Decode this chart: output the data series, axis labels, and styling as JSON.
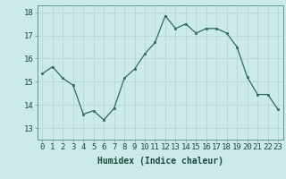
{
  "x": [
    0,
    1,
    2,
    3,
    4,
    5,
    6,
    7,
    8,
    9,
    10,
    11,
    12,
    13,
    14,
    15,
    16,
    17,
    18,
    19,
    20,
    21,
    22,
    23
  ],
  "y": [
    15.35,
    15.65,
    15.15,
    14.85,
    13.6,
    13.75,
    13.35,
    13.85,
    15.15,
    15.55,
    16.2,
    16.7,
    17.85,
    17.3,
    17.5,
    17.1,
    17.3,
    17.3,
    17.1,
    16.5,
    15.2,
    14.45,
    14.45,
    13.8
  ],
  "xlabel": "Humidex (Indice chaleur)",
  "ylim": [
    12.5,
    18.3
  ],
  "xlim": [
    -0.5,
    23.5
  ],
  "yticks": [
    13,
    14,
    15,
    16,
    17,
    18
  ],
  "xticks": [
    0,
    1,
    2,
    3,
    4,
    5,
    6,
    7,
    8,
    9,
    10,
    11,
    12,
    13,
    14,
    15,
    16,
    17,
    18,
    19,
    20,
    21,
    22,
    23
  ],
  "line_color": "#2e6b5e",
  "marker_color": "#2e6b5e",
  "bg_color": "#cceae7",
  "grid_color": "#b8d8d4",
  "xlabel_fontsize": 7,
  "tick_fontsize": 6.5
}
